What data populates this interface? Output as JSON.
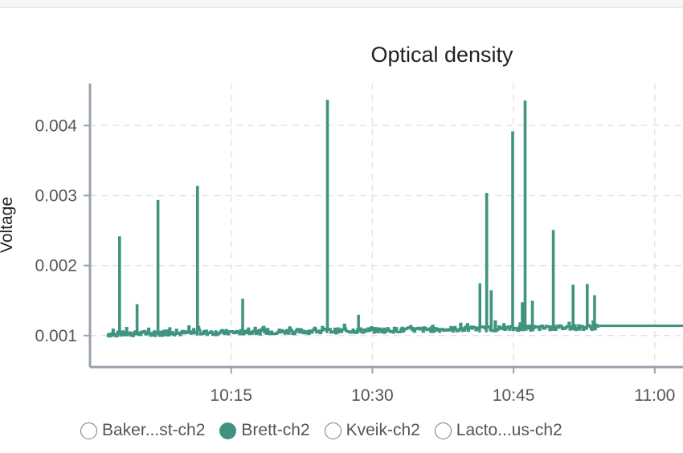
{
  "chart_data": {
    "type": "line",
    "title": "Optical density",
    "ylabel": "Voltage",
    "xlabel": "",
    "yticks": [
      "0.001",
      "0.002",
      "0.003",
      "0.004"
    ],
    "ytick_values": [
      0.001,
      0.002,
      0.003,
      0.004
    ],
    "xticks": [
      "10:15",
      "10:30",
      "10:45",
      "11:00"
    ],
    "xtick_values": [
      10.25,
      10.5,
      10.75,
      11.0
    ],
    "xlim": [
      10.0,
      11.05
    ],
    "ylim": [
      0.00055,
      0.0046
    ],
    "grid": true,
    "series": [
      {
        "name": "Brett-ch2",
        "color": "#3f9480",
        "visible": true,
        "baseline": 0.00102,
        "baseline_end": 0.00112,
        "x_start": 10.03,
        "x_end_noise": 10.9,
        "plateau": {
          "x_start": 10.9,
          "x_end": 11.05,
          "value": 0.00114
        },
        "spikes": [
          {
            "x": 10.052,
            "y": 0.0024
          },
          {
            "x": 10.083,
            "y": 0.00143
          },
          {
            "x": 10.12,
            "y": 0.00292
          },
          {
            "x": 10.19,
            "y": 0.00312
          },
          {
            "x": 10.27,
            "y": 0.00151
          },
          {
            "x": 10.42,
            "y": 0.00435
          },
          {
            "x": 10.475,
            "y": 0.00128
          },
          {
            "x": 10.69,
            "y": 0.00173
          },
          {
            "x": 10.702,
            "y": 0.00302
          },
          {
            "x": 10.71,
            "y": 0.00163
          },
          {
            "x": 10.748,
            "y": 0.0039
          },
          {
            "x": 10.77,
            "y": 0.00434
          },
          {
            "x": 10.765,
            "y": 0.00146
          },
          {
            "x": 10.783,
            "y": 0.00148
          },
          {
            "x": 10.82,
            "y": 0.00249
          },
          {
            "x": 10.855,
            "y": 0.00171
          },
          {
            "x": 10.88,
            "y": 0.00172
          },
          {
            "x": 10.893,
            "y": 0.00156
          }
        ]
      },
      {
        "name": "Baker...st-ch2",
        "visible": false
      },
      {
        "name": "Kveik-ch2",
        "visible": false
      },
      {
        "name": "Lacto...us-ch2",
        "visible": false
      }
    ]
  },
  "legend": {
    "items": [
      {
        "label": "Baker...st-ch2",
        "active": false
      },
      {
        "label": "Brett-ch2",
        "active": true
      },
      {
        "label": "Kveik-ch2",
        "active": false
      },
      {
        "label": "Lacto...us-ch2",
        "active": false
      }
    ]
  },
  "colors": {
    "series": "#3f9480",
    "axis": "#98a2ad",
    "grid": "#e4e4e4"
  }
}
